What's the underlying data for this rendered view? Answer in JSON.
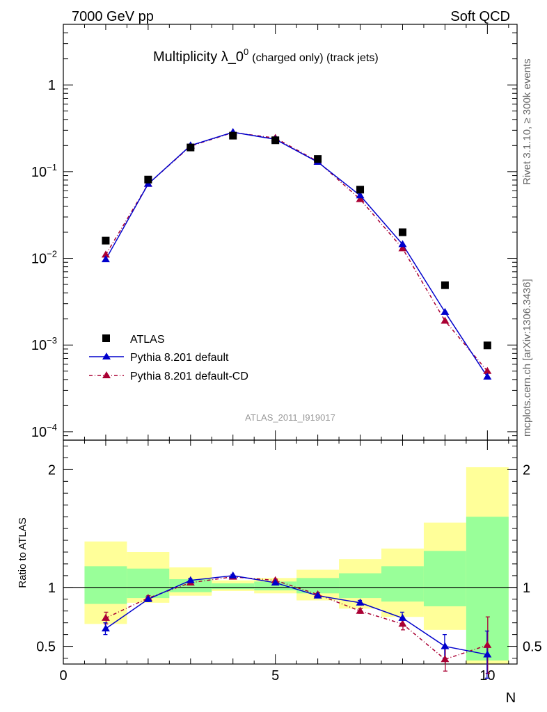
{
  "header": {
    "energy_label": "7000 GeV pp",
    "category_label": "Soft QCD",
    "title_main": "Multiplicity λ_0",
    "title_sup": "0",
    "title_suffix": "(charged only) (track jets)"
  },
  "side_labels": {
    "rivet": "Rivet 3.1.10, ≥ 300k events",
    "mcplots": "mcplots.cern.ch [arXiv:1306.3436]"
  },
  "analysis_id": "ATLAS_2011_I919017",
  "colors": {
    "data": "#000000",
    "pythia_default": "#0000cc",
    "pythia_cd": "#aa0033",
    "band_inner": "#99ff99",
    "band_outer": "#ffff99",
    "label_grey": "#999999"
  },
  "chart_data": [
    {
      "type": "line",
      "scale": "log",
      "x": [
        1,
        2,
        3,
        4,
        5,
        6,
        7,
        8,
        9,
        10
      ],
      "xlim": [
        0,
        10.7
      ],
      "ylim": [
        8e-05,
        5
      ],
      "yticks": [
        {
          "value": 0.0001,
          "base": "10",
          "exp": "−4"
        },
        {
          "value": 0.001,
          "base": "10",
          "exp": "−3"
        },
        {
          "value": 0.01,
          "base": "10",
          "exp": "−2"
        },
        {
          "value": 0.1,
          "base": "10",
          "exp": "−1"
        },
        {
          "value": 1,
          "base": "1",
          "exp": ""
        }
      ],
      "series": [
        {
          "name": "ATLAS",
          "marker": "square",
          "values": [
            0.016,
            0.081,
            0.19,
            0.26,
            0.23,
            0.14,
            0.062,
            0.02,
            0.0049,
            0.00099
          ]
        },
        {
          "name": "Pythia 8.201 default",
          "marker": "triangle",
          "values": [
            0.0097,
            0.072,
            0.2,
            0.285,
            0.236,
            0.129,
            0.053,
            0.0145,
            0.0024,
            0.00043
          ]
        },
        {
          "name": "Pythia 8.201 default-CD",
          "marker": "triangle",
          "values": [
            0.011,
            0.072,
            0.197,
            0.283,
            0.244,
            0.131,
            0.048,
            0.013,
            0.0019,
            0.0005
          ]
        }
      ]
    },
    {
      "type": "line",
      "x": [
        1,
        2,
        3,
        4,
        5,
        6,
        7,
        8,
        9,
        10
      ],
      "xlim": [
        0,
        10.7
      ],
      "ylim": [
        0.35,
        2.25
      ],
      "xticks": [
        0,
        5,
        10
      ],
      "yticks": [
        0.5,
        1,
        2
      ],
      "xlabel": "N",
      "ylabel": "Ratio to ATLAS",
      "bands": {
        "inner": [
          [
            0.86,
            1.18
          ],
          [
            0.91,
            1.16
          ],
          [
            0.96,
            1.07
          ],
          [
            0.985,
            1.035
          ],
          [
            0.975,
            1.05
          ],
          [
            0.95,
            1.08
          ],
          [
            0.91,
            1.12
          ],
          [
            0.88,
            1.18
          ],
          [
            0.84,
            1.31
          ],
          [
            0.38,
            1.6
          ]
        ],
        "outer": [
          [
            0.69,
            1.39
          ],
          [
            0.87,
            1.3
          ],
          [
            0.93,
            1.17
          ],
          [
            0.97,
            1.06
          ],
          [
            0.95,
            1.08
          ],
          [
            0.89,
            1.15
          ],
          [
            0.82,
            1.24
          ],
          [
            0.75,
            1.33
          ],
          [
            0.64,
            1.55
          ],
          [
            0.35,
            2.02
          ]
        ]
      },
      "series": [
        {
          "name": "Pythia 8.201 default",
          "values": [
            0.65,
            0.9,
            1.06,
            1.1,
            1.04,
            0.93,
            0.87,
            0.74,
            0.5,
            0.43
          ],
          "errors": [
            0.05,
            0.02,
            0.015,
            0.01,
            0.01,
            0.015,
            0.02,
            0.05,
            0.1,
            0.2
          ]
        },
        {
          "name": "Pythia 8.201 default-CD",
          "values": [
            0.74,
            0.91,
            1.04,
            1.09,
            1.06,
            0.94,
            0.8,
            0.69,
            0.39,
            0.51
          ],
          "errors": [
            0.05,
            0.02,
            0.015,
            0.01,
            0.01,
            0.015,
            0.02,
            0.05,
            0.1,
            0.24
          ]
        }
      ]
    }
  ]
}
